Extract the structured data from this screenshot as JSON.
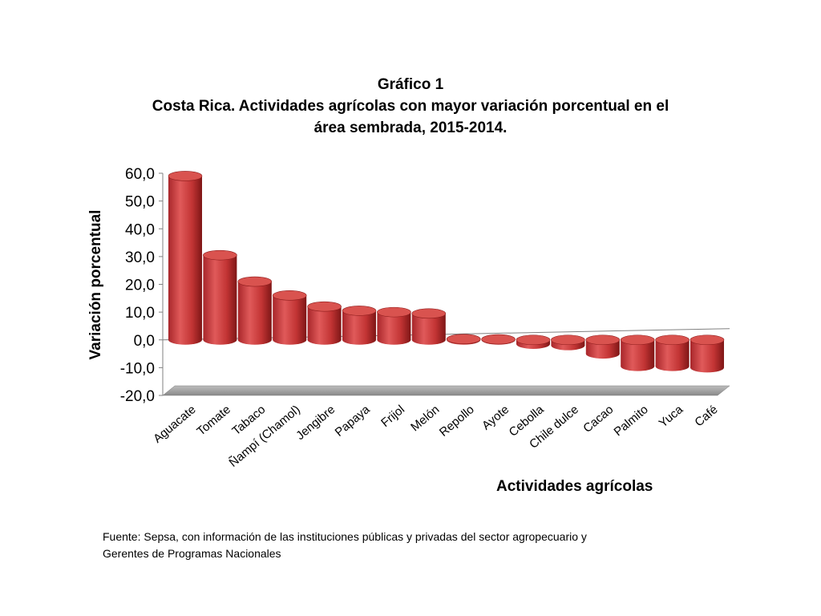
{
  "title_lines": [
    "Gráfico 1",
    "Costa Rica. Actividades agrícolas con mayor variación porcentual en el",
    "área sembrada, 2015-2014."
  ],
  "source_lines": [
    "Fuente:  Sepsa, con información de las instituciones públicas y privadas del sector agropecuario y",
    "Gerentes de Programas Nacionales"
  ],
  "colors": {
    "bar": "#c0392b",
    "bar_dark": "#8e1c1c",
    "bar_top": "#d9534f",
    "floor": "#a6a6a6"
  },
  "chart_data": {
    "type": "bar",
    "style": "3d-cylinder",
    "title": "Gráfico 1 Costa Rica. Actividades agrícolas con mayor variación porcentual en el área sembrada, 2015-2014.",
    "xlabel": "Actividades agrícolas",
    "ylabel": "Variación porcentual",
    "ylim": [
      -20,
      60
    ],
    "yticks": [
      "-20,0",
      "-10,0",
      "0,0",
      "10,0",
      "20,0",
      "30,0",
      "40,0",
      "50,0",
      "60,0"
    ],
    "ytick_values": [
      -20,
      -10,
      0,
      10,
      20,
      30,
      40,
      50,
      60
    ],
    "categories": [
      "Aguacate",
      "Tomate",
      "Tabaco",
      "Ñampí (Chamol)",
      "Jengibre",
      "Papaya",
      "Frijol",
      "Melón",
      "Repollo",
      "Ayote",
      "Cebolla",
      "Chile dulce",
      "Cacao",
      "Palmito",
      "Yuca",
      "Café"
    ],
    "values": [
      59.0,
      30.5,
      21.0,
      16.0,
      12.0,
      10.5,
      10.0,
      9.5,
      0.3,
      0.2,
      -1.5,
      -2.0,
      -5.0,
      -9.5,
      -9.5,
      -10.0
    ],
    "grid": false,
    "legend": "none"
  }
}
